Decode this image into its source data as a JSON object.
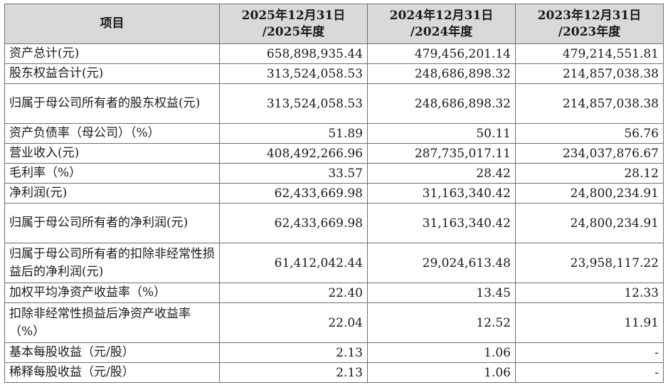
{
  "table": {
    "headers": [
      {
        "line1": "项目",
        "line2": ""
      },
      {
        "line1": "2025年12月31日",
        "line2": "/2025年度"
      },
      {
        "line1": "2024年12月31日",
        "line2": "/2024年度"
      },
      {
        "line1": "2023年12月31日",
        "line2": "/2023年度"
      }
    ],
    "rows": [
      {
        "label": "资产总计(元)",
        "v2025": "658,898,935.44",
        "v2024": "479,456,201.14",
        "v2023": "479,214,551.81"
      },
      {
        "label": "股东权益合计(元)",
        "v2025": "313,524,058.53",
        "v2024": "248,686,898.32",
        "v2023": "214,857,038.38"
      },
      {
        "label": "归属于母公司所有者的股东权益(元)",
        "v2025": "313,524,058.53",
        "v2024": "248,686,898.32",
        "v2023": "214,857,038.38"
      },
      {
        "label": "资产负债率（母公司）（%）",
        "v2025": "51.89",
        "v2024": "50.11",
        "v2023": "56.76"
      },
      {
        "label": "营业收入(元)",
        "v2025": "408,492,266.96",
        "v2024": "287,735,017.11",
        "v2023": "234,037,876.67"
      },
      {
        "label": "毛利率（%）",
        "v2025": "33.57",
        "v2024": "28.42",
        "v2023": "28.12"
      },
      {
        "label": "净利润(元)",
        "v2025": "62,433,669.98",
        "v2024": "31,163,340.42",
        "v2023": "24,800,234.91"
      },
      {
        "label": "归属于母公司所有者的净利润(元)",
        "v2025": "62,433,669.98",
        "v2024": "31,163,340.42",
        "v2023": "24,800,234.91"
      },
      {
        "label": "归属于母公司所有者的扣除非经常性损益后的净利润(元)",
        "v2025": "61,412,042.44",
        "v2024": "29,024,613.48",
        "v2023": "23,958,117.22"
      },
      {
        "label": "加权平均净资产收益率（%）",
        "v2025": "22.40",
        "v2024": "13.45",
        "v2023": "12.33"
      },
      {
        "label": "扣除非经常性损益后净资产收益率（%）",
        "v2025": "22.04",
        "v2024": "12.52",
        "v2023": "11.91"
      },
      {
        "label": "基本每股收益（元/股）",
        "v2025": "2.13",
        "v2024": "1.06",
        "v2023": "-"
      },
      {
        "label": "稀释每股收益（元/股）",
        "v2025": "2.13",
        "v2024": "1.06",
        "v2023": "-"
      }
    ]
  }
}
